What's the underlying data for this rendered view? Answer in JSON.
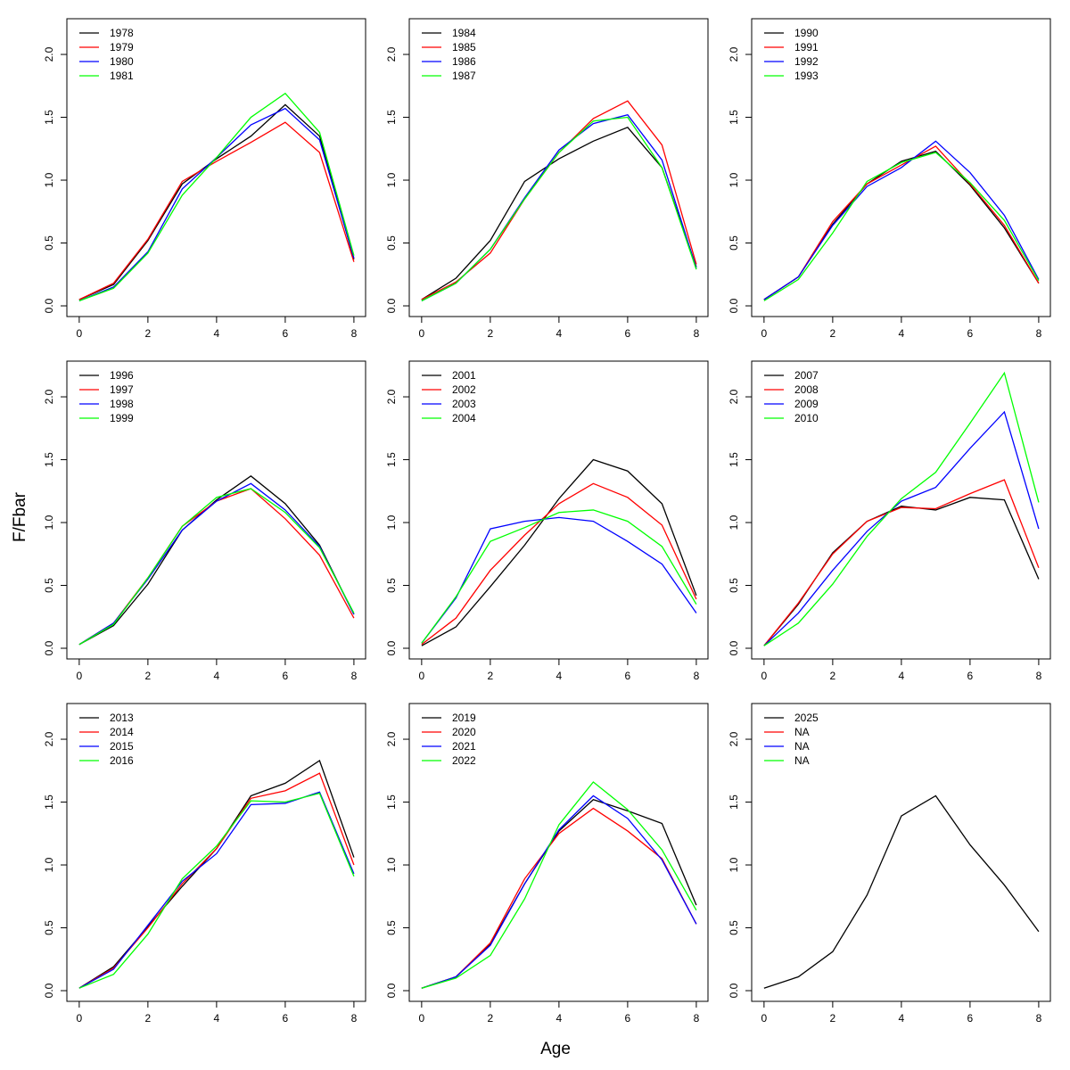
{
  "xlabel": "Age",
  "ylabel": "F/Fbar",
  "chart_data": [
    {
      "type": "line",
      "legend": "topleft",
      "x": [
        0,
        1,
        2,
        3,
        4,
        5,
        6,
        7,
        8
      ],
      "xlim": [
        -0.36,
        8.34
      ],
      "ylim": [
        -0.085,
        2.284
      ],
      "xticks": [
        0,
        2,
        4,
        6,
        8
      ],
      "yticks": [
        {
          "value": 0,
          "label": "0.0"
        },
        {
          "value": 0.5,
          "label": "0.5"
        },
        {
          "value": 1,
          "label": "1.0"
        },
        {
          "value": 1.5,
          "label": "1.5"
        },
        {
          "value": 2,
          "label": "2.0"
        }
      ],
      "series": [
        {
          "name": "1978",
          "color": "#000000",
          "values": [
            0.05,
            0.17,
            0.52,
            0.97,
            1.17,
            1.35,
            1.6,
            1.35,
            0.37
          ]
        },
        {
          "name": "1979",
          "color": "#ff0000",
          "values": [
            0.05,
            0.18,
            0.53,
            0.99,
            1.15,
            1.3,
            1.46,
            1.22,
            0.35
          ]
        },
        {
          "name": "1980",
          "color": "#0000ff",
          "values": [
            0.04,
            0.15,
            0.43,
            0.93,
            1.18,
            1.44,
            1.57,
            1.32,
            0.38
          ]
        },
        {
          "name": "1981",
          "color": "#00ff00",
          "values": [
            0.04,
            0.14,
            0.42,
            0.88,
            1.18,
            1.5,
            1.69,
            1.38,
            0.4
          ]
        }
      ]
    },
    {
      "type": "line",
      "legend": "topleft",
      "x": [
        0,
        1,
        2,
        3,
        4,
        5,
        6,
        7,
        8
      ],
      "xlim": [
        -0.36,
        8.34
      ],
      "ylim": [
        -0.085,
        2.284
      ],
      "xticks": [
        0,
        2,
        4,
        6,
        8
      ],
      "yticks": [
        {
          "value": 0,
          "label": "0.0"
        },
        {
          "value": 0.5,
          "label": "0.5"
        },
        {
          "value": 1,
          "label": "1.0"
        },
        {
          "value": 1.5,
          "label": "1.5"
        },
        {
          "value": 2,
          "label": "2.0"
        }
      ],
      "series": [
        {
          "name": "1984",
          "color": "#000000",
          "values": [
            0.05,
            0.22,
            0.52,
            0.99,
            1.17,
            1.31,
            1.42,
            1.1,
            0.31
          ]
        },
        {
          "name": "1985",
          "color": "#ff0000",
          "values": [
            0.05,
            0.19,
            0.42,
            0.85,
            1.22,
            1.49,
            1.63,
            1.28,
            0.33
          ]
        },
        {
          "name": "1986",
          "color": "#0000ff",
          "values": [
            0.04,
            0.18,
            0.45,
            0.86,
            1.24,
            1.45,
            1.52,
            1.16,
            0.3
          ]
        },
        {
          "name": "1987",
          "color": "#00ff00",
          "values": [
            0.04,
            0.18,
            0.45,
            0.85,
            1.22,
            1.47,
            1.5,
            1.1,
            0.29
          ]
        }
      ]
    },
    {
      "type": "line",
      "legend": "topleft",
      "x": [
        0,
        1,
        2,
        3,
        4,
        5,
        6,
        7,
        8
      ],
      "xlim": [
        -0.36,
        8.34
      ],
      "ylim": [
        -0.085,
        2.284
      ],
      "xticks": [
        0,
        2,
        4,
        6,
        8
      ],
      "yticks": [
        {
          "value": 0,
          "label": "0.0"
        },
        {
          "value": 0.5,
          "label": "0.5"
        },
        {
          "value": 1,
          "label": "1.0"
        },
        {
          "value": 1.5,
          "label": "1.5"
        },
        {
          "value": 2,
          "label": "2.0"
        }
      ],
      "series": [
        {
          "name": "1990",
          "color": "#000000",
          "values": [
            0.05,
            0.23,
            0.65,
            0.97,
            1.15,
            1.23,
            0.96,
            0.62,
            0.18
          ]
        },
        {
          "name": "1991",
          "color": "#ff0000",
          "values": [
            0.05,
            0.23,
            0.67,
            0.97,
            1.12,
            1.27,
            0.97,
            0.64,
            0.18
          ]
        },
        {
          "name": "1992",
          "color": "#0000ff",
          "values": [
            0.05,
            0.23,
            0.64,
            0.95,
            1.1,
            1.31,
            1.06,
            0.72,
            0.21
          ]
        },
        {
          "name": "1993",
          "color": "#00ff00",
          "values": [
            0.04,
            0.21,
            0.58,
            0.99,
            1.14,
            1.22,
            0.98,
            0.68,
            0.2
          ]
        }
      ]
    },
    {
      "type": "line",
      "legend": "topleft",
      "x": [
        0,
        1,
        2,
        3,
        4,
        5,
        6,
        7,
        8
      ],
      "xlim": [
        -0.36,
        8.34
      ],
      "ylim": [
        -0.085,
        2.284
      ],
      "xticks": [
        0,
        2,
        4,
        6,
        8
      ],
      "yticks": [
        {
          "value": 0,
          "label": "0.0"
        },
        {
          "value": 0.5,
          "label": "0.5"
        },
        {
          "value": 1,
          "label": "1.0"
        },
        {
          "value": 1.5,
          "label": "1.5"
        },
        {
          "value": 2,
          "label": "2.0"
        }
      ],
      "series": [
        {
          "name": "1996",
          "color": "#000000",
          "values": [
            0.03,
            0.18,
            0.51,
            0.94,
            1.18,
            1.37,
            1.15,
            0.82,
            0.27
          ]
        },
        {
          "name": "1997",
          "color": "#ff0000",
          "values": [
            0.03,
            0.2,
            0.56,
            0.97,
            1.17,
            1.27,
            1.03,
            0.74,
            0.24
          ]
        },
        {
          "name": "1998",
          "color": "#0000ff",
          "values": [
            0.03,
            0.2,
            0.55,
            0.94,
            1.17,
            1.31,
            1.1,
            0.81,
            0.27
          ]
        },
        {
          "name": "1999",
          "color": "#00ff00",
          "values": [
            0.03,
            0.19,
            0.56,
            0.97,
            1.2,
            1.27,
            1.08,
            0.8,
            0.28
          ]
        }
      ]
    },
    {
      "type": "line",
      "legend": "topleft",
      "x": [
        0,
        1,
        2,
        3,
        4,
        5,
        6,
        7,
        8
      ],
      "xlim": [
        -0.36,
        8.34
      ],
      "ylim": [
        -0.085,
        2.284
      ],
      "xticks": [
        0,
        2,
        4,
        6,
        8
      ],
      "yticks": [
        {
          "value": 0,
          "label": "0.0"
        },
        {
          "value": 0.5,
          "label": "0.5"
        },
        {
          "value": 1,
          "label": "1.0"
        },
        {
          "value": 1.5,
          "label": "1.5"
        },
        {
          "value": 2,
          "label": "2.0"
        }
      ],
      "series": [
        {
          "name": "2001",
          "color": "#000000",
          "values": [
            0.02,
            0.17,
            0.49,
            0.82,
            1.19,
            1.5,
            1.41,
            1.15,
            0.42
          ]
        },
        {
          "name": "2002",
          "color": "#ff0000",
          "values": [
            0.03,
            0.24,
            0.62,
            0.9,
            1.15,
            1.31,
            1.2,
            0.98,
            0.39
          ]
        },
        {
          "name": "2003",
          "color": "#0000ff",
          "values": [
            0.04,
            0.4,
            0.95,
            1.01,
            1.04,
            1.01,
            0.85,
            0.67,
            0.28
          ]
        },
        {
          "name": "2004",
          "color": "#00ff00",
          "values": [
            0.04,
            0.41,
            0.85,
            0.96,
            1.08,
            1.1,
            1.01,
            0.81,
            0.35
          ]
        }
      ]
    },
    {
      "type": "line",
      "legend": "topleft",
      "x": [
        0,
        1,
        2,
        3,
        4,
        5,
        6,
        7,
        8
      ],
      "xlim": [
        -0.36,
        8.34
      ],
      "ylim": [
        -0.085,
        2.284
      ],
      "xticks": [
        0,
        2,
        4,
        6,
        8
      ],
      "yticks": [
        {
          "value": 0,
          "label": "0.0"
        },
        {
          "value": 0.5,
          "label": "0.5"
        },
        {
          "value": 1,
          "label": "1.0"
        },
        {
          "value": 1.5,
          "label": "1.5"
        },
        {
          "value": 2,
          "label": "2.0"
        }
      ],
      "series": [
        {
          "name": "2007",
          "color": "#000000",
          "values": [
            0.02,
            0.35,
            0.76,
            1.01,
            1.13,
            1.1,
            1.2,
            1.18,
            0.55
          ]
        },
        {
          "name": "2008",
          "color": "#ff0000",
          "values": [
            0.02,
            0.36,
            0.75,
            1.01,
            1.12,
            1.11,
            1.23,
            1.34,
            0.64
          ]
        },
        {
          "name": "2009",
          "color": "#0000ff",
          "values": [
            0.02,
            0.28,
            0.62,
            0.93,
            1.17,
            1.28,
            1.59,
            1.88,
            0.95
          ]
        },
        {
          "name": "2010",
          "color": "#00ff00",
          "values": [
            0.02,
            0.2,
            0.51,
            0.89,
            1.19,
            1.4,
            1.79,
            2.19,
            1.16
          ]
        }
      ]
    },
    {
      "type": "line",
      "legend": "topleft",
      "x": [
        0,
        1,
        2,
        3,
        4,
        5,
        6,
        7,
        8
      ],
      "xlim": [
        -0.36,
        8.34
      ],
      "ylim": [
        -0.085,
        2.284
      ],
      "xticks": [
        0,
        2,
        4,
        6,
        8
      ],
      "yticks": [
        {
          "value": 0,
          "label": "0.0"
        },
        {
          "value": 0.5,
          "label": "0.5"
        },
        {
          "value": 1,
          "label": "1.0"
        },
        {
          "value": 1.5,
          "label": "1.5"
        },
        {
          "value": 2,
          "label": "2.0"
        }
      ],
      "series": [
        {
          "name": "2013",
          "color": "#000000",
          "values": [
            0.02,
            0.19,
            0.51,
            0.83,
            1.13,
            1.55,
            1.65,
            1.83,
            1.06
          ]
        },
        {
          "name": "2014",
          "color": "#ff0000",
          "values": [
            0.02,
            0.18,
            0.5,
            0.85,
            1.13,
            1.53,
            1.59,
            1.73,
            1.0
          ]
        },
        {
          "name": "2015",
          "color": "#0000ff",
          "values": [
            0.02,
            0.17,
            0.52,
            0.87,
            1.09,
            1.48,
            1.49,
            1.58,
            0.93
          ]
        },
        {
          "name": "2016",
          "color": "#00ff00",
          "values": [
            0.02,
            0.13,
            0.45,
            0.89,
            1.15,
            1.51,
            1.5,
            1.57,
            0.91
          ]
        }
      ]
    },
    {
      "type": "line",
      "legend": "topleft",
      "x": [
        0,
        1,
        2,
        3,
        4,
        5,
        6,
        7,
        8
      ],
      "xlim": [
        -0.36,
        8.34
      ],
      "ylim": [
        -0.085,
        2.284
      ],
      "xticks": [
        0,
        2,
        4,
        6,
        8
      ],
      "yticks": [
        {
          "value": 0,
          "label": "0.0"
        },
        {
          "value": 0.5,
          "label": "0.5"
        },
        {
          "value": 1,
          "label": "1.0"
        },
        {
          "value": 1.5,
          "label": "1.5"
        },
        {
          "value": 2,
          "label": "2.0"
        }
      ],
      "series": [
        {
          "name": "2019",
          "color": "#000000",
          "values": [
            0.02,
            0.11,
            0.37,
            0.85,
            1.27,
            1.52,
            1.43,
            1.33,
            0.68
          ]
        },
        {
          "name": "2020",
          "color": "#ff0000",
          "values": [
            0.02,
            0.11,
            0.38,
            0.89,
            1.25,
            1.45,
            1.27,
            1.05,
            0.53
          ]
        },
        {
          "name": "2021",
          "color": "#0000ff",
          "values": [
            0.02,
            0.11,
            0.36,
            0.85,
            1.28,
            1.55,
            1.37,
            1.04,
            0.53
          ]
        },
        {
          "name": "2022",
          "color": "#00ff00",
          "values": [
            0.02,
            0.1,
            0.28,
            0.73,
            1.32,
            1.66,
            1.44,
            1.12,
            0.64
          ]
        }
      ]
    },
    {
      "type": "line",
      "legend": "topleft",
      "x": [
        0,
        1,
        2,
        3,
        4,
        5,
        6,
        7,
        8
      ],
      "xlim": [
        -0.36,
        8.34
      ],
      "ylim": [
        -0.085,
        2.284
      ],
      "xticks": [
        0,
        2,
        4,
        6,
        8
      ],
      "yticks": [
        {
          "value": 0,
          "label": "0.0"
        },
        {
          "value": 0.5,
          "label": "0.5"
        },
        {
          "value": 1,
          "label": "1.0"
        },
        {
          "value": 1.5,
          "label": "1.5"
        },
        {
          "value": 2,
          "label": "2.0"
        }
      ],
      "series": [
        {
          "name": "2025",
          "color": "#000000",
          "values": [
            0.02,
            0.11,
            0.31,
            0.76,
            1.39,
            1.55,
            1.16,
            0.84,
            0.47
          ]
        },
        {
          "name": "NA",
          "color": "#ff0000",
          "values": [
            null,
            null,
            null,
            null,
            null,
            null,
            null,
            null,
            null
          ]
        },
        {
          "name": "NA",
          "color": "#0000ff",
          "values": [
            null,
            null,
            null,
            null,
            null,
            null,
            null,
            null,
            null
          ]
        },
        {
          "name": "NA",
          "color": "#00ff00",
          "values": [
            null,
            null,
            null,
            null,
            null,
            null,
            null,
            null,
            null
          ]
        }
      ]
    }
  ]
}
